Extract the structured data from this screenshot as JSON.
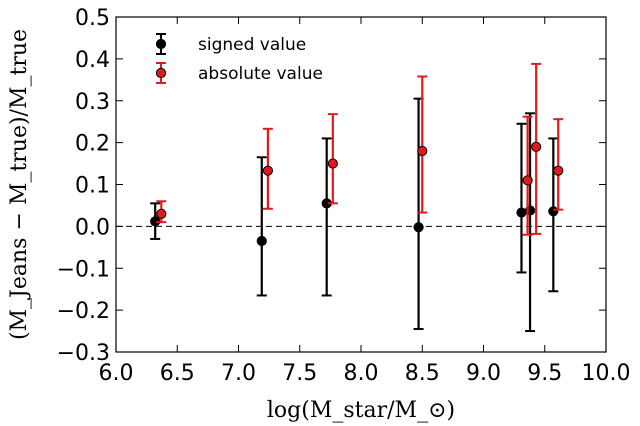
{
  "chart_data": {
    "type": "scatter",
    "xlabel": "log(M_star/M_⊙)",
    "ylabel": "(M_Jeans − M_true)/M_true",
    "xlim": [
      6.0,
      10.0
    ],
    "ylim": [
      -0.3,
      0.5
    ],
    "x_ticks": [
      "6.0",
      "6.5",
      "7.0",
      "7.5",
      "8.0",
      "8.5",
      "9.0",
      "9.5",
      "10.0"
    ],
    "y_ticks": [
      "−0.3",
      "−0.2",
      "−0.1",
      "0.0",
      "0.1",
      "0.2",
      "0.3",
      "0.4",
      "0.5"
    ],
    "reference_line": {
      "y": 0.0,
      "style": "dashed"
    },
    "grid": false,
    "legend_position": "top-left",
    "series": [
      {
        "name": "signed value",
        "color": "#000000",
        "points": [
          {
            "x": 6.32,
            "y": 0.012,
            "low": -0.03,
            "high": 0.055
          },
          {
            "x": 7.19,
            "y": -0.035,
            "low": -0.165,
            "high": 0.165
          },
          {
            "x": 7.72,
            "y": 0.055,
            "low": -0.165,
            "high": 0.21
          },
          {
            "x": 8.47,
            "y": -0.002,
            "low": -0.245,
            "high": 0.305
          },
          {
            "x": 9.31,
            "y": 0.033,
            "low": -0.11,
            "high": 0.245
          },
          {
            "x": 9.38,
            "y": 0.038,
            "low": -0.25,
            "high": 0.27
          },
          {
            "x": 9.57,
            "y": 0.036,
            "low": -0.155,
            "high": 0.21
          }
        ]
      },
      {
        "name": "absolute value",
        "color": "#e31a1c",
        "points": [
          {
            "x": 6.37,
            "y": 0.03,
            "low": 0.01,
            "high": 0.06
          },
          {
            "x": 7.24,
            "y": 0.133,
            "low": 0.042,
            "high": 0.233
          },
          {
            "x": 7.77,
            "y": 0.15,
            "low": 0.055,
            "high": 0.268
          },
          {
            "x": 8.5,
            "y": 0.18,
            "low": 0.033,
            "high": 0.358
          },
          {
            "x": 9.36,
            "y": 0.11,
            "low": -0.02,
            "high": 0.262
          },
          {
            "x": 9.43,
            "y": 0.19,
            "low": -0.018,
            "high": 0.388
          },
          {
            "x": 9.61,
            "y": 0.133,
            "low": 0.04,
            "high": 0.256
          }
        ]
      }
    ]
  }
}
